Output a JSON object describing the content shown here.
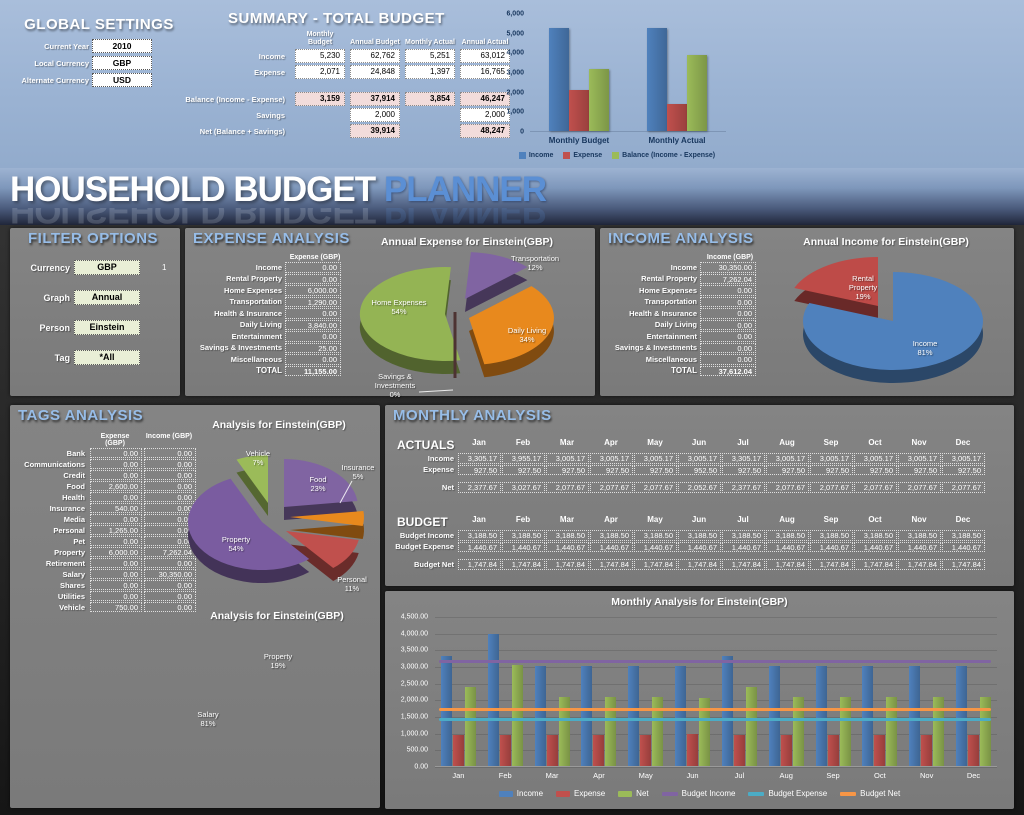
{
  "global_settings": {
    "title": "GLOBAL SETTINGS",
    "fields": [
      {
        "label": "Current Year",
        "value": "2010"
      },
      {
        "label": "Local Currency",
        "value": "GBP"
      },
      {
        "label": "Alternate Currency",
        "value": "USD"
      }
    ]
  },
  "summary": {
    "title": "SUMMARY - TOTAL BUDGET",
    "columns": [
      "Monthly Budget",
      "Annual Budget",
      "Monthly Actual",
      "Annual Actual"
    ],
    "rows": [
      {
        "label": "Income",
        "values": [
          "5,230",
          "62,762",
          "5,251",
          "63,012"
        ]
      },
      {
        "label": "Expense",
        "values": [
          "2,071",
          "24,848",
          "1,397",
          "16,765"
        ]
      }
    ],
    "balance_row": {
      "label": "Balance (Income - Expense)",
      "values": [
        "3,159",
        "37,914",
        "3,854",
        "46,247"
      ]
    },
    "savings_row": {
      "label": "Savings",
      "values": [
        "",
        "2,000",
        "",
        "2,000"
      ]
    },
    "net_row": {
      "label": "Net (Balance + Savings)",
      "values": [
        "",
        "39,914",
        "",
        "48,247"
      ]
    }
  },
  "banner": {
    "title_main": "HOUSEHOLD BUDGET",
    "title_accent": "PLANNER"
  },
  "filter_options": {
    "title": "FILTER OPTIONS",
    "fields": [
      {
        "label": "Currency",
        "value": "GBP",
        "note": "1"
      },
      {
        "label": "Graph",
        "value": "Annual",
        "note": ""
      },
      {
        "label": "Person",
        "value": "Einstein",
        "note": ""
      },
      {
        "label": "Tag",
        "value": "*All",
        "note": ""
      }
    ]
  },
  "expense_analysis": {
    "title": "EXPENSE ANALYSIS",
    "header": "Expense  (GBP)",
    "rows": [
      {
        "label": "Income",
        "value": "0.00"
      },
      {
        "label": "Rental Property",
        "value": "0.00"
      },
      {
        "label": "Home Expenses",
        "value": "6,000.00"
      },
      {
        "label": "Transportation",
        "value": "1,290.00"
      },
      {
        "label": "Health & Insurance",
        "value": "0.00"
      },
      {
        "label": "Daily Living",
        "value": "3,840.00"
      },
      {
        "label": "Entertainment",
        "value": "0.00"
      },
      {
        "label": "Savings & Investments",
        "value": "25.00"
      },
      {
        "label": "Miscellaneous",
        "value": "0.00"
      }
    ],
    "total": {
      "label": "TOTAL",
      "value": "11,155.00"
    }
  },
  "income_analysis": {
    "title": "INCOME ANALYSIS",
    "header": "Income  (GBP)",
    "rows": [
      {
        "label": "Income",
        "value": "30,350.00"
      },
      {
        "label": "Rental Property",
        "value": "7,262.04"
      },
      {
        "label": "Home Expenses",
        "value": "0.00"
      },
      {
        "label": "Transportation",
        "value": "0.00"
      },
      {
        "label": "Health & Insurance",
        "value": "0.00"
      },
      {
        "label": "Daily Living",
        "value": "0.00"
      },
      {
        "label": "Entertainment",
        "value": "0.00"
      },
      {
        "label": "Savings & Investments",
        "value": "0.00"
      },
      {
        "label": "Miscellaneous",
        "value": "0.00"
      }
    ],
    "total": {
      "label": "TOTAL",
      "value": "37,612.04"
    }
  },
  "tags_analysis": {
    "title": "TAGS ANALYSIS",
    "headers": [
      "Expense  (GBP)",
      "Income  (GBP)"
    ],
    "rows": [
      {
        "label": "Bank",
        "values": [
          "0.00",
          "0.00"
        ]
      },
      {
        "label": "Communications",
        "values": [
          "0.00",
          "0.00"
        ]
      },
      {
        "label": "Credit",
        "values": [
          "0.00",
          "0.00"
        ]
      },
      {
        "label": "Food",
        "values": [
          "2,600.00",
          "0.00"
        ]
      },
      {
        "label": "Health",
        "values": [
          "0.00",
          "0.00"
        ]
      },
      {
        "label": "Insurance",
        "values": [
          "540.00",
          "0.00"
        ]
      },
      {
        "label": "Media",
        "values": [
          "0.00",
          "0.00"
        ]
      },
      {
        "label": "Personal",
        "values": [
          "1,265.00",
          "0.00"
        ]
      },
      {
        "label": "Pet",
        "values": [
          "0.00",
          "0.00"
        ]
      },
      {
        "label": "Property",
        "values": [
          "6,000.00",
          "7,262.04"
        ]
      },
      {
        "label": "Retirement",
        "values": [
          "0.00",
          "0.00"
        ]
      },
      {
        "label": "Salary",
        "values": [
          "0.00",
          "30,350.00"
        ]
      },
      {
        "label": "Shares",
        "values": [
          "0.00",
          "0.00"
        ]
      },
      {
        "label": "Utilities",
        "values": [
          "0.00",
          "0.00"
        ]
      },
      {
        "label": "Vehicle",
        "values": [
          "750.00",
          "0.00"
        ]
      }
    ]
  },
  "monthly_analysis": {
    "title": "MONTHLY ANALYSIS",
    "months": [
      "Jan",
      "Feb",
      "Mar",
      "Apr",
      "May",
      "Jun",
      "Jul",
      "Aug",
      "Sep",
      "Oct",
      "Nov",
      "Dec"
    ],
    "actuals": {
      "label": "ACTUALS",
      "rows": [
        {
          "label": "Income",
          "values": [
            "3,305.17",
            "3,955.17",
            "3,005.17",
            "3,005.17",
            "3,005.17",
            "3,005.17",
            "3,305.17",
            "3,005.17",
            "3,005.17",
            "3,005.17",
            "3,005.17",
            "3,005.17"
          ]
        },
        {
          "label": "Expense",
          "values": [
            "927.50",
            "927.50",
            "927.50",
            "927.50",
            "927.50",
            "952.50",
            "927.50",
            "927.50",
            "927.50",
            "927.50",
            "927.50",
            "927.50"
          ]
        }
      ],
      "net": {
        "label": "Net",
        "values": [
          "2,377.67",
          "3,027.67",
          "2,077.67",
          "2,077.67",
          "2,077.67",
          "2,052.67",
          "2,377.67",
          "2,077.67",
          "2,077.67",
          "2,077.67",
          "2,077.67",
          "2,077.67"
        ]
      }
    },
    "budget": {
      "label": "BUDGET",
      "rows": [
        {
          "label": "Budget Income",
          "values": [
            "3,188.50",
            "3,188.50",
            "3,188.50",
            "3,188.50",
            "3,188.50",
            "3,188.50",
            "3,188.50",
            "3,188.50",
            "3,188.50",
            "3,188.50",
            "3,188.50",
            "3,188.50"
          ]
        },
        {
          "label": "Budget Expense",
          "values": [
            "1,440.67",
            "1,440.67",
            "1,440.67",
            "1,440.67",
            "1,440.67",
            "1,440.67",
            "1,440.67",
            "1,440.67",
            "1,440.67",
            "1,440.67",
            "1,440.67",
            "1,440.67"
          ]
        }
      ],
      "net": {
        "label": "Budget Net",
        "values": [
          "1,747.84",
          "1,747.84",
          "1,747.84",
          "1,747.84",
          "1,747.84",
          "1,747.84",
          "1,747.84",
          "1,747.84",
          "1,747.84",
          "1,747.84",
          "1,747.84",
          "1,747.84"
        ]
      }
    }
  },
  "chart_data": [
    {
      "id": "summary_bar",
      "type": "bar",
      "title": "",
      "categories": [
        "Monthly Budget",
        "Monthly Actual"
      ],
      "series": [
        {
          "name": "Income",
          "color": "#4F81BD",
          "values": [
            5230,
            5251
          ]
        },
        {
          "name": "Expense",
          "color": "#C0504D",
          "values": [
            2071,
            1397
          ]
        },
        {
          "name": "Balance (Income - Expense)",
          "color": "#9BBB59",
          "values": [
            3159,
            3854
          ]
        }
      ],
      "ylim": [
        0,
        6000
      ],
      "ystep": 1000,
      "yticks": [
        "6,000",
        "5,000",
        "4,000",
        "3,000",
        "2,000",
        "1,000",
        "0"
      ],
      "legend_position": "bottom",
      "grid": false
    },
    {
      "id": "expense_pie",
      "type": "pie",
      "title": "Annual Expense for Einstein(GBP)",
      "slices": [
        {
          "name": "Transportation",
          "pct": 12,
          "pct_label": "12%",
          "color": "#8064A2"
        },
        {
          "name": "Daily Living",
          "pct": 34,
          "pct_label": "34%",
          "color": "#E8891D"
        },
        {
          "name": "Savings & Investments",
          "pct": 0,
          "pct_label": "0%",
          "color": "#6B3A38"
        },
        {
          "name": "Home Expenses",
          "pct": 54,
          "pct_label": "54%",
          "color": "#94B454"
        }
      ]
    },
    {
      "id": "income_pie",
      "type": "pie",
      "title": "Annual Income for Einstein(GBP)",
      "slices": [
        {
          "name": "Income",
          "pct": 81,
          "pct_label": "81%",
          "color": "#4F81BD"
        },
        {
          "name": "Rental Property",
          "pct": 19,
          "pct_label": "19%",
          "color": "#BE4B48"
        }
      ]
    },
    {
      "id": "tags_pie",
      "type": "pie",
      "title": "Analysis for Einstein(GBP)",
      "slices": [
        {
          "name": "Food",
          "pct": 23,
          "pct_label": "23%",
          "color": "#8064A2"
        },
        {
          "name": "Insurance",
          "pct": 5,
          "pct_label": "5%",
          "color": "#E8891D"
        },
        {
          "name": "Personal",
          "pct": 11,
          "pct_label": "11%",
          "color": "#C0504D"
        },
        {
          "name": "Property",
          "pct": 54,
          "pct_label": "54%",
          "color": "#7A5CA0"
        },
        {
          "name": "Vehicle",
          "pct": 7,
          "pct_label": "7%",
          "color": "#9BBB59"
        }
      ]
    },
    {
      "id": "tags_income_pie",
      "type": "pie",
      "labels_only": true,
      "title": "Analysis for Einstein(GBP)",
      "slices": [
        {
          "name": "Property",
          "pct": 19,
          "pct_label": "19%"
        },
        {
          "name": "Salary",
          "pct": 81,
          "pct_label": "81%"
        }
      ]
    },
    {
      "id": "monthly_bar",
      "type": "bar",
      "title": "Monthly Analysis for Einstein(GBP)",
      "categories": [
        "Jan",
        "Feb",
        "Mar",
        "Apr",
        "May",
        "Jun",
        "Jul",
        "Aug",
        "Sep",
        "Oct",
        "Nov",
        "Dec"
      ],
      "series": [
        {
          "name": "Income",
          "color": "#4F81BD",
          "values": [
            3305.17,
            3955.17,
            3005.17,
            3005.17,
            3005.17,
            3005.17,
            3305.17,
            3005.17,
            3005.17,
            3005.17,
            3005.17,
            3005.17
          ]
        },
        {
          "name": "Expense",
          "color": "#C0504D",
          "values": [
            927.5,
            927.5,
            927.5,
            927.5,
            927.5,
            952.5,
            927.5,
            927.5,
            927.5,
            927.5,
            927.5,
            927.5
          ]
        },
        {
          "name": "Net",
          "color": "#9BBB59",
          "values": [
            2377.67,
            3027.67,
            2077.67,
            2077.67,
            2077.67,
            2052.67,
            2377.67,
            2077.67,
            2077.67,
            2077.67,
            2077.67,
            2077.67
          ]
        }
      ],
      "lines": [
        {
          "name": "Budget Income",
          "color": "#8064A2",
          "value": 3188.5
        },
        {
          "name": "Budget Expense",
          "color": "#4BACC6",
          "value": 1440.67
        },
        {
          "name": "Budget Net",
          "color": "#F79646",
          "value": 1747.84
        }
      ],
      "ylim": [
        0,
        4500
      ],
      "ystep": 500,
      "yticks": [
        "4,500.00",
        "4,000.00",
        "3,500.00",
        "3,000.00",
        "2,500.00",
        "2,000.00",
        "1,500.00",
        "1,000.00",
        "500.00",
        "0.00"
      ],
      "legend_position": "bottom",
      "grid": true
    }
  ]
}
